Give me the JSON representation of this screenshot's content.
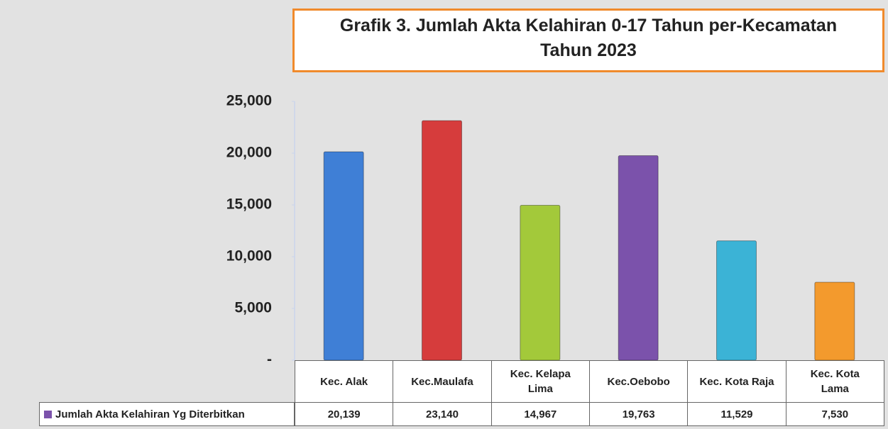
{
  "chart_data": {
    "type": "bar",
    "title": [
      "Grafik  3. Jumlah Akta Kelahiran 0-17 Tahun  per-Kecamatan",
      "Tahun  2023"
    ],
    "categories": [
      "Kec. Alak",
      "Kec.Maulafa",
      "Kec. Kelapa Lima",
      "Kec.Oebobo",
      "Kec. Kota Raja",
      "Kec. Kota Lama"
    ],
    "series": [
      {
        "name": "Jumlah Akta Kelahiran Yg Diterbitkan",
        "color": "#7b52ab",
        "colors": [
          "#3f7fd6",
          "#d63c3c",
          "#a3c93a",
          "#7b52ab",
          "#3bb3d6",
          "#f39a2d"
        ],
        "values": [
          20139,
          23140,
          14967,
          19763,
          11529,
          7530
        ],
        "value_labels": [
          "20,139",
          "23,140",
          "14,967",
          "19,763",
          "11,529",
          "7,530"
        ]
      }
    ],
    "ylim": [
      0,
      25000
    ],
    "yticks": [
      {
        "value": 0,
        "label": "-"
      },
      {
        "value": 5000,
        "label": "5,000"
      },
      {
        "value": 10000,
        "label": "10,000"
      },
      {
        "value": 15000,
        "label": "15,000"
      },
      {
        "value": 20000,
        "label": "20,000"
      },
      {
        "value": 25000,
        "label": "25,000"
      }
    ]
  }
}
